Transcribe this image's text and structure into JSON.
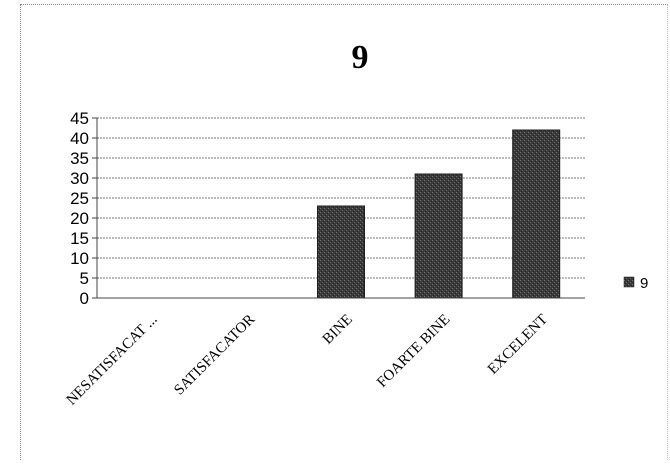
{
  "chart_data": {
    "type": "bar",
    "title": "9",
    "xlabel": "",
    "ylabel": "",
    "categories": [
      "NESATISFACAT ...",
      "SATISFACATOR",
      "BINE",
      "FOARTE BINE",
      "EXCELENT"
    ],
    "series": [
      {
        "name": "9",
        "values": [
          0,
          0,
          23,
          31,
          42
        ],
        "color": "#3a3a3a"
      }
    ],
    "ylim": [
      0,
      45
    ],
    "yticks": [
      "0",
      "5",
      "10",
      "15",
      "20",
      "25",
      "30",
      "35",
      "40",
      "45"
    ],
    "grid": true,
    "legend": "right"
  }
}
